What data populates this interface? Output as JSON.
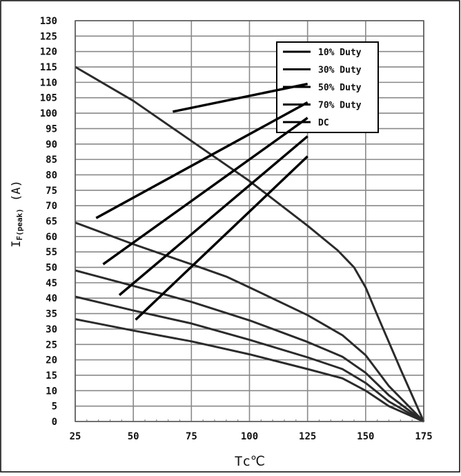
{
  "chart_data": {
    "type": "line",
    "xlabel": "Tc℃",
    "ylabel": "IF(peak) (A)",
    "ylabel_main": "I",
    "ylabel_sub": "F(peak)",
    "ylabel_unit": " (A)",
    "xlim": [
      25,
      175
    ],
    "ylim": [
      0,
      130
    ],
    "x_ticks": [
      25,
      50,
      75,
      100,
      125,
      150,
      175
    ],
    "y_ticks": [
      0,
      5,
      10,
      15,
      20,
      25,
      30,
      35,
      40,
      45,
      50,
      55,
      60,
      65,
      70,
      75,
      80,
      85,
      90,
      95,
      100,
      105,
      110,
      115,
      120,
      125,
      130
    ],
    "grid": true,
    "legend_position": "top-right",
    "series": [
      {
        "name": "DC",
        "points": [
          [
            25,
            33.2
          ],
          [
            50,
            29.5
          ],
          [
            75,
            26.0
          ],
          [
            100,
            21.8
          ],
          [
            125,
            17.0
          ],
          [
            140,
            14.0
          ],
          [
            150,
            10.0
          ],
          [
            160,
            5.0
          ],
          [
            175,
            0
          ]
        ]
      },
      {
        "name": "70% Duty",
        "points": [
          [
            25,
            40.5
          ],
          [
            50,
            36.0
          ],
          [
            75,
            31.8
          ],
          [
            100,
            26.5
          ],
          [
            125,
            20.8
          ],
          [
            140,
            17.0
          ],
          [
            150,
            12.5
          ],
          [
            160,
            6.5
          ],
          [
            175,
            0
          ]
        ]
      },
      {
        "name": "50% Duty",
        "points": [
          [
            25,
            49.0
          ],
          [
            50,
            44.0
          ],
          [
            75,
            38.8
          ],
          [
            100,
            32.8
          ],
          [
            125,
            25.8
          ],
          [
            140,
            21.0
          ],
          [
            150,
            15.8
          ],
          [
            160,
            8.5
          ],
          [
            175,
            0
          ]
        ]
      },
      {
        "name": "30% Duty",
        "points": [
          [
            25,
            64.5
          ],
          [
            50,
            57.5
          ],
          [
            75,
            51.0
          ],
          [
            90,
            47.0
          ],
          [
            100,
            43.5
          ],
          [
            125,
            34.5
          ],
          [
            140,
            28.0
          ],
          [
            150,
            21.5
          ],
          [
            160,
            11.5
          ],
          [
            175,
            0
          ]
        ]
      },
      {
        "name": "10% Duty",
        "points": [
          [
            25,
            115.0
          ],
          [
            50,
            104.0
          ],
          [
            75,
            91.0
          ],
          [
            100,
            78.0
          ],
          [
            125,
            63.5
          ],
          [
            138,
            55.5
          ],
          [
            145,
            50.0
          ],
          [
            150,
            43.5
          ],
          [
            155,
            34.5
          ],
          [
            165,
            17.0
          ],
          [
            175,
            0
          ]
        ]
      }
    ],
    "annotations": [
      {
        "label": "10% Duty",
        "from": [
          67,
          100.5
        ],
        "to": [
          125,
          109.5
        ]
      },
      {
        "label": "30% Duty",
        "from": [
          34,
          66.0
        ],
        "to": [
          125,
          103.5
        ]
      },
      {
        "label": "50% Duty",
        "from": [
          37,
          51.0
        ],
        "to": [
          125,
          98.5
        ]
      },
      {
        "label": "70% Duty",
        "from": [
          44,
          41.0
        ],
        "to": [
          125,
          92.5
        ]
      },
      {
        "label": "DC",
        "from": [
          51,
          33.0
        ],
        "to": [
          125,
          86.0
        ]
      }
    ],
    "line_color": "#2b2b2b",
    "grid_color": "#888888"
  }
}
